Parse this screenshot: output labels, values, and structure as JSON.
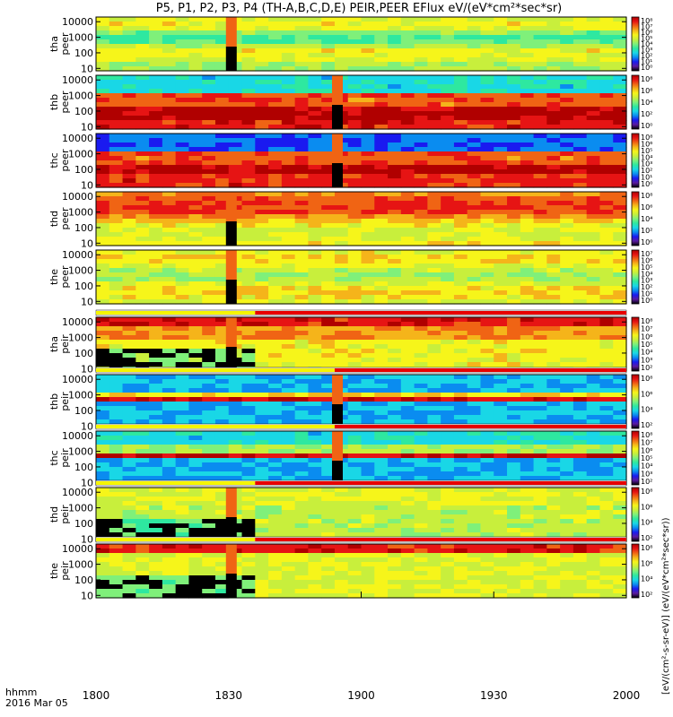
{
  "title": "P5, P1, P2, P3, P4 (TH-A,B,C,D,E) PEIR,PEER EFlux eV/(eV*cm²*sec*sr)",
  "colorbar_label": "[eV/(cm²-s-sr-eV)] (eV/(eV*cm²*sec*sr))",
  "time_label": "hhmm",
  "date_label": "2016 Mar 05",
  "colors": {
    "colormap": [
      "#000000",
      "#5a1aa0",
      "#1a1af0",
      "#0a8cf0",
      "#19d7e6",
      "#2ee8a0",
      "#7ff07a",
      "#c8ef3c",
      "#f6f51a",
      "#f5b41a",
      "#f06414",
      "#e61414",
      "#b00000"
    ],
    "mode_white": "#ffffff",
    "mode_yellow": "#f5f500",
    "mode_red": "#e80000"
  },
  "chart_data": {
    "type": "heatmap",
    "x_axis": {
      "range": [
        "18:00",
        "20:00"
      ],
      "tick_labels": [
        "1800",
        "1830",
        "1900",
        "1930",
        "2000"
      ]
    },
    "y_axis": {
      "scale": "log",
      "range": [
        7,
        20000
      ],
      "tick_labels": [
        "10",
        "100",
        "1000",
        "10000"
      ]
    },
    "panels": [
      {
        "probe": "tha",
        "species": "peer",
        "label_top": "tha",
        "label_bottom": "peer",
        "cbar_ticks": [
          "10⁸",
          "10⁷",
          "10⁶",
          "10⁵",
          "10⁴",
          "10³",
          "10²",
          "10¹",
          "10⁰"
        ]
      },
      {
        "probe": "thb",
        "species": "peer",
        "label_top": "thb",
        "label_bottom": "peer",
        "cbar_ticks": [
          "10⁸",
          "10⁶",
          "10⁴",
          "10²",
          "10⁰"
        ]
      },
      {
        "probe": "thc",
        "species": "peer",
        "label_top": "thc",
        "label_bottom": "peer",
        "cbar_ticks": [
          "10⁸",
          "10⁶",
          "10⁵",
          "10⁴",
          "10³",
          "10²",
          "10¹",
          "10⁰"
        ]
      },
      {
        "probe": "thd",
        "species": "peer",
        "label_top": "thd",
        "label_bottom": "peer",
        "cbar_ticks": [
          "10⁸",
          "10⁶",
          "10⁴",
          "10²",
          "10⁰"
        ]
      },
      {
        "probe": "the",
        "species": "peer",
        "label_top": "the",
        "label_bottom": "peer",
        "cbar_ticks": [
          "10⁷",
          "10⁶",
          "10⁵",
          "10⁴",
          "10³",
          "10²",
          "10¹",
          "10⁰"
        ]
      },
      {
        "probe": "tha",
        "species": "peir",
        "label_top": "tha",
        "label_bottom": "peir",
        "cbar_ticks": [
          "10⁸",
          "10⁷",
          "10⁶",
          "10⁵",
          "10⁴",
          "10³",
          "10²"
        ]
      },
      {
        "probe": "thb",
        "species": "peir",
        "label_top": "thb",
        "label_bottom": "peir",
        "cbar_ticks": [
          "10⁸",
          "10⁶",
          "10⁴",
          "10²"
        ]
      },
      {
        "probe": "thc",
        "species": "peir",
        "label_top": "thc",
        "label_bottom": "peir",
        "cbar_ticks": [
          "10⁸",
          "10⁷",
          "10⁶",
          "10⁵",
          "10⁴",
          "10³",
          "10²"
        ]
      },
      {
        "probe": "thd",
        "species": "peir",
        "label_top": "thd",
        "label_bottom": "peir",
        "cbar_ticks": [
          "10⁸",
          "10⁶",
          "10⁴",
          "10²"
        ]
      },
      {
        "probe": "the",
        "species": "peir",
        "label_top": "the",
        "label_bottom": "peir",
        "cbar_ticks": [
          "10⁸",
          "10⁶",
          "10⁴",
          "10²"
        ]
      }
    ]
  }
}
